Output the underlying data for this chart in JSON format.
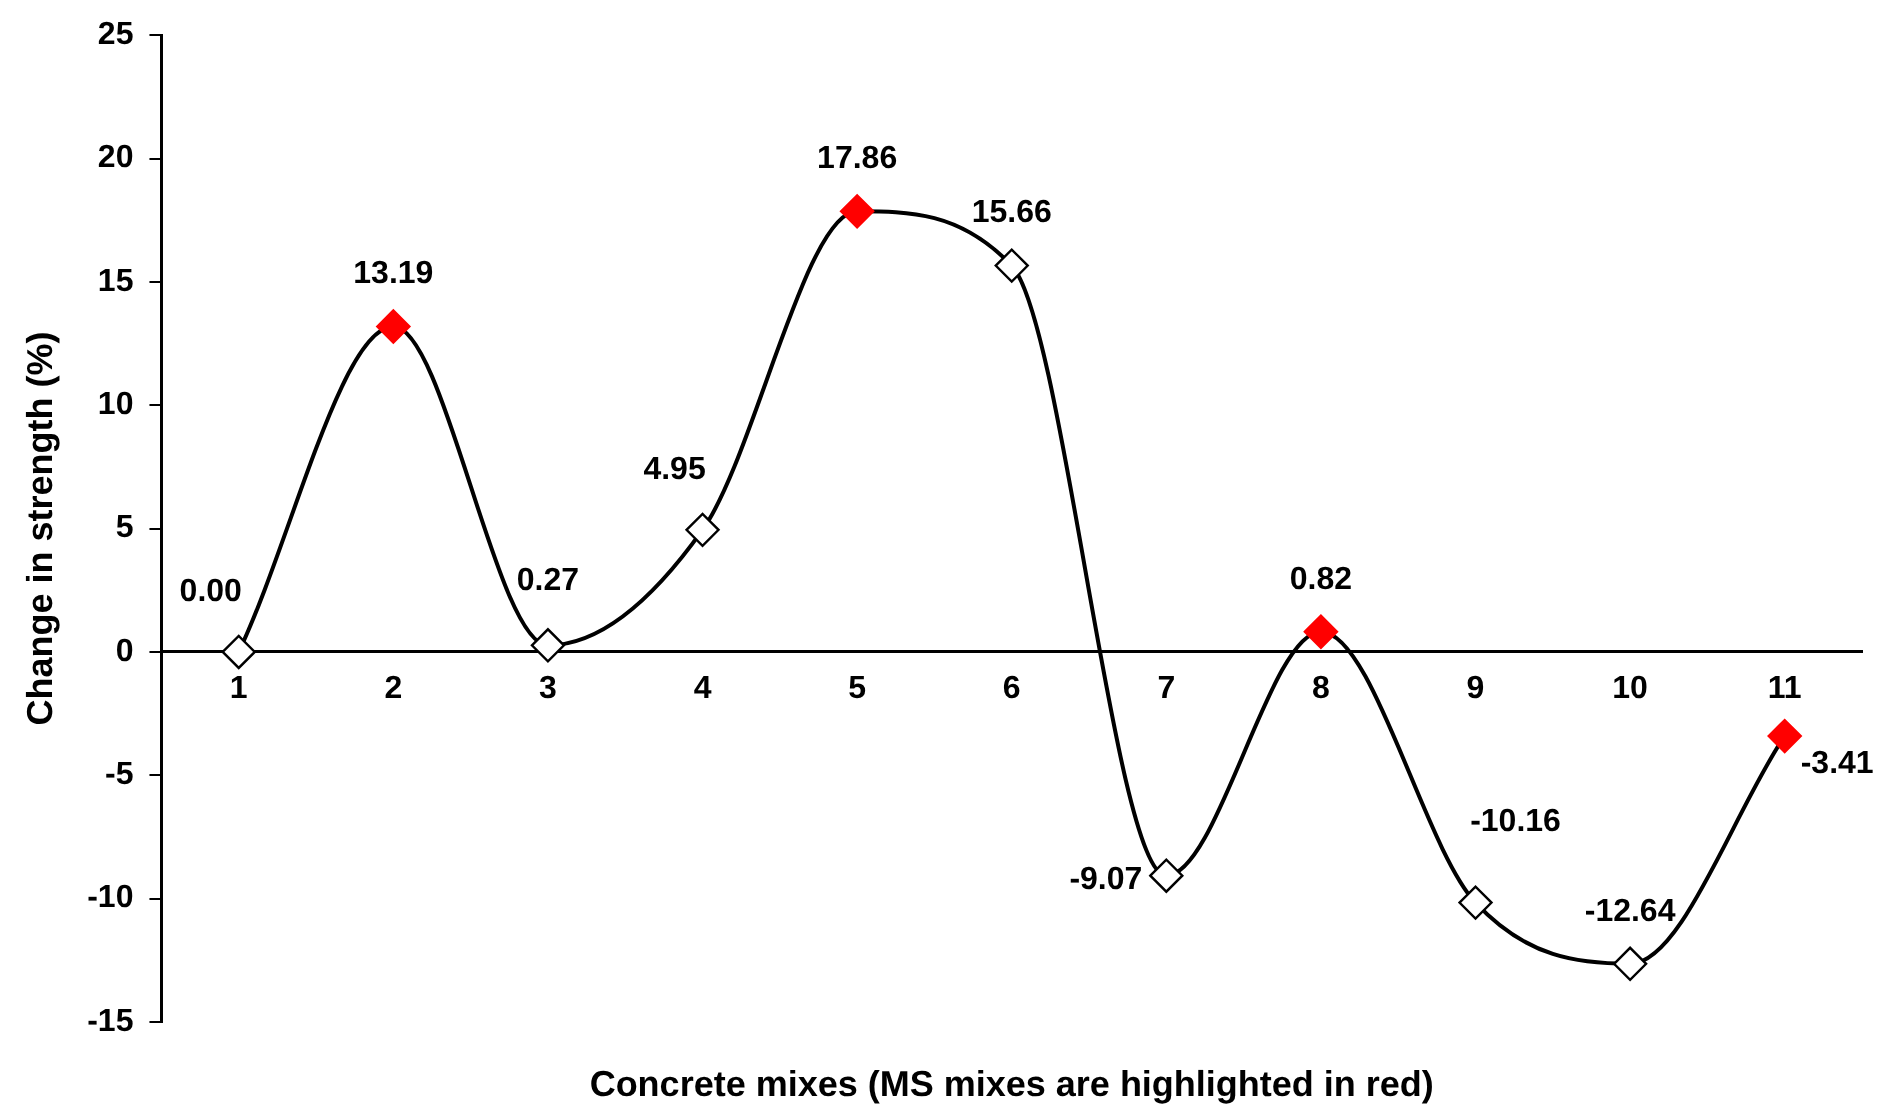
{
  "chart_data": {
    "type": "line",
    "xlabel": "Concrete mixes (MS mixes are highlighted in red)",
    "ylabel": "Change in strength (%)",
    "categories": [
      "1",
      "2",
      "3",
      "4",
      "5",
      "6",
      "7",
      "8",
      "9",
      "10",
      "11"
    ],
    "series": [
      {
        "color": "#000000",
        "colors": [
          "#ffffff",
          "#ff0000",
          "#ffffff",
          "#ffffff",
          "#ff0000",
          "#ffffff",
          "#ffffff",
          "#ff0000",
          "#ffffff",
          "#ffffff",
          "#ff0000"
        ],
        "values": [
          0,
          13.19,
          0.27,
          4.95,
          17.86,
          15.66,
          -9.07,
          0.82,
          -10.16,
          -12.64,
          -3.41
        ],
        "value_labels": [
          "0.00",
          "13.19",
          "0.27",
          "4.95",
          "17.86",
          "15.66",
          "-9.07",
          "0.82",
          "-10.16",
          "-12.64",
          "-3.41"
        ]
      }
    ],
    "ylim": [
      -15,
      25
    ],
    "yticks": [
      -15,
      -10,
      -5,
      0,
      5,
      10,
      15,
      20,
      25
    ],
    "grid": false,
    "legend": false,
    "marker": "diamond",
    "line_style": "solid"
  }
}
